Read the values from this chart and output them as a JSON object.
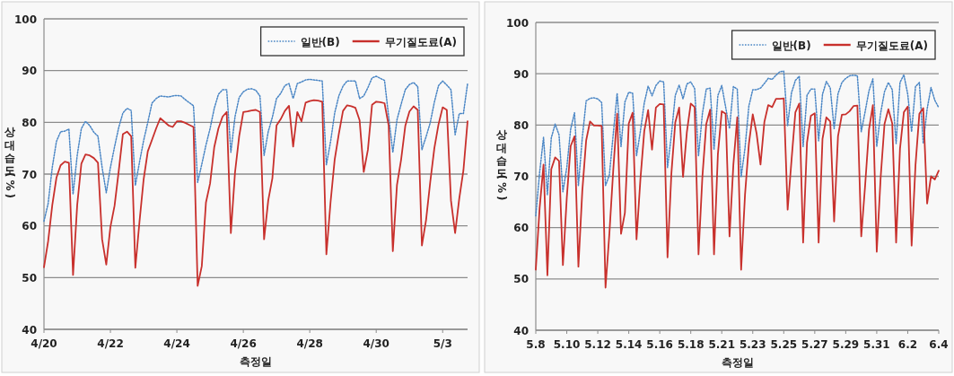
{
  "chart_data": [
    {
      "type": "line",
      "xlabel": "측정일",
      "ylabel": "상대습도(%)",
      "ylim": [
        40,
        100
      ],
      "yticks": [
        40,
        50,
        60,
        70,
        80,
        90,
        100
      ],
      "grid": "y",
      "legend": "top right",
      "categories": [
        "4/20",
        null,
        null,
        null,
        null,
        null,
        null,
        null,
        null,
        null,
        null,
        null,
        null,
        null,
        null,
        null,
        "4/22",
        null,
        null,
        null,
        null,
        null,
        null,
        null,
        null,
        null,
        null,
        null,
        null,
        null,
        null,
        null,
        "4/24",
        null,
        null,
        null,
        null,
        null,
        null,
        null,
        null,
        null,
        null,
        null,
        null,
        null,
        null,
        null,
        "4/26",
        null,
        null,
        null,
        null,
        null,
        null,
        null,
        null,
        null,
        null,
        null,
        null,
        null,
        null,
        null,
        "4/28",
        null,
        null,
        null,
        null,
        null,
        null,
        null,
        null,
        null,
        null,
        null,
        null,
        null,
        null,
        null,
        "4/30",
        null,
        null,
        null,
        null,
        null,
        null,
        null,
        null,
        null,
        null,
        null,
        null,
        null,
        null,
        null,
        "5/3",
        null,
        null,
        null,
        null,
        null,
        null
      ],
      "series": [
        {
          "name": "일반(B)",
          "color": "#4a86c5",
          "line_style": "dotted",
          "values": [
            60.9,
            64.3,
            71.3,
            76.3,
            78.2,
            78.3,
            78.7,
            66.1,
            73.6,
            78.8,
            80.2,
            79.4,
            78.1,
            77.3,
            71.3,
            66.4,
            71.3,
            75.3,
            79,
            81.8,
            82.7,
            82.3,
            67.8,
            72.3,
            76.5,
            80,
            83.7,
            84.6,
            85.1,
            85,
            84.9,
            85.1,
            85.2,
            85.1,
            84.4,
            83.8,
            83.2,
            68.4,
            71.9,
            75.6,
            78.8,
            82.7,
            85.4,
            86.3,
            86.3,
            74.2,
            81.1,
            84.8,
            85.9,
            86.4,
            86.5,
            86.2,
            85.1,
            73.6,
            78.2,
            81,
            84.6,
            85.6,
            87.1,
            87.5,
            84.6,
            87.5,
            87.8,
            88.2,
            88.3,
            88.2,
            88.1,
            88,
            71.8,
            76.2,
            81.8,
            85.1,
            87,
            88,
            88,
            88,
            84.6,
            85.1,
            86.7,
            88.6,
            88.9,
            88.5,
            88.1,
            81.1,
            74.2,
            80.5,
            83.5,
            86.3,
            87.3,
            87.7,
            86.9,
            74.7,
            77.2,
            79.9,
            83.9,
            87.1,
            88,
            87.2,
            86.3,
            77.6,
            81.7,
            81.7,
            87.5
          ]
        },
        {
          "name": "무기질도료(A)",
          "color": "#c8302c",
          "line_style": "solid",
          "values": [
            52,
            57,
            64,
            69.3,
            71.7,
            72.4,
            72.2,
            50.5,
            64,
            72,
            73.8,
            73.6,
            73.1,
            72.2,
            57.4,
            52.5,
            59.8,
            63.9,
            70.6,
            77.7,
            78.2,
            77.3,
            51.9,
            60.8,
            69,
            74.4,
            76.6,
            78.8,
            80.8,
            80.1,
            79.4,
            79.1,
            80.2,
            80.2,
            79.9,
            79.5,
            79.1,
            48.4,
            52.2,
            64.5,
            68.2,
            75.2,
            78.8,
            81.1,
            82,
            58.6,
            70.3,
            77.3,
            82,
            82.1,
            82.3,
            82.4,
            82,
            57.4,
            64.9,
            69.2,
            79.4,
            80.6,
            82.2,
            83.2,
            75.3,
            82,
            80.2,
            83.8,
            84.1,
            84.3,
            84.2,
            84,
            54.5,
            64.5,
            72.8,
            77.8,
            82.2,
            83.3,
            83.1,
            82.8,
            80.4,
            70.4,
            74.7,
            83.4,
            84,
            83.9,
            83.7,
            79.4,
            55.1,
            67.9,
            72.8,
            79.3,
            82.1,
            83.1,
            82.4,
            56.2,
            61.1,
            68.4,
            75,
            79.6,
            82.9,
            82.4,
            64.9,
            58.6,
            65.3,
            70.7,
            80.2
          ]
        }
      ]
    },
    {
      "type": "line",
      "xlabel": "측정일",
      "ylabel": "상대습도(%)",
      "ylim": [
        40,
        100
      ],
      "yticks": [
        40,
        50,
        60,
        70,
        80,
        90,
        100
      ],
      "grid": "y",
      "legend": "top right",
      "categories": [
        "5.8",
        null,
        null,
        null,
        null,
        null,
        null,
        null,
        "5.10",
        null,
        null,
        null,
        null,
        null,
        null,
        null,
        "5.12",
        null,
        null,
        null,
        null,
        null,
        null,
        null,
        "5.14",
        null,
        null,
        null,
        null,
        null,
        null,
        null,
        "5.16",
        null,
        null,
        null,
        null,
        null,
        null,
        null,
        "5.18",
        null,
        null,
        null,
        null,
        null,
        null,
        null,
        "5.21",
        null,
        null,
        null,
        null,
        null,
        null,
        null,
        "5.23",
        null,
        null,
        null,
        null,
        null,
        null,
        null,
        "5.25",
        null,
        null,
        null,
        null,
        null,
        null,
        null,
        "5.27",
        null,
        null,
        null,
        null,
        null,
        null,
        null,
        "5.29",
        null,
        null,
        null,
        null,
        null,
        null,
        null,
        "5.31",
        null,
        null,
        null,
        null,
        null,
        null,
        null,
        "6.2",
        null,
        null,
        null,
        null,
        null,
        null,
        null,
        "6.4"
      ],
      "series": [
        {
          "name": "일반(B)",
          "color": "#4a86c5",
          "line_style": "dotted",
          "values": [
            62.3,
            70.8,
            77.6,
            66.4,
            77.5,
            80.2,
            78.1,
            67,
            71.7,
            79.2,
            82.4,
            68.2,
            77.5,
            84.7,
            85.2,
            85.3,
            85.1,
            84.4,
            68.2,
            70.3,
            78.3,
            86.2,
            75.8,
            84.5,
            86.4,
            86.2,
            74,
            78.8,
            84.3,
            87.6,
            85.7,
            87.7,
            88.6,
            88.4,
            71.7,
            78.1,
            85.8,
            87.8,
            85.1,
            88,
            88.4,
            87.1,
            74,
            82.2,
            87,
            87.2,
            75.2,
            85.8,
            87.7,
            83.5,
            79.3,
            87.5,
            87,
            69.9,
            75.5,
            83.7,
            86.9,
            86.9,
            87.2,
            88.1,
            89.1,
            88.9,
            89.7,
            90.4,
            90.5,
            79.9,
            86.3,
            88.7,
            89.5,
            75.8,
            85.8,
            87,
            87,
            76.9,
            86,
            88.5,
            87.2,
            79.3,
            86.1,
            88.3,
            89.1,
            89.6,
            89.7,
            89.6,
            78.7,
            82.6,
            86.7,
            89,
            75.8,
            82.3,
            86.5,
            88.3,
            86.9,
            76.4,
            88.3,
            89.8,
            86,
            78.7,
            87.5,
            88.3,
            76.4,
            83.1,
            87.3,
            84.8,
            83.4
          ]
        },
        {
          "name": "무기질도료(A)",
          "color": "#c8302c",
          "line_style": "solid",
          "values": [
            51.8,
            63.9,
            72.3,
            50.7,
            71.4,
            73.7,
            73,
            52.7,
            65.8,
            75.9,
            77.8,
            52.4,
            67.1,
            77,
            80.7,
            79.9,
            79.9,
            79.8,
            48.3,
            58.9,
            71.3,
            82.2,
            58.8,
            62.9,
            80.3,
            82.4,
            57.7,
            69.4,
            78.8,
            82.9,
            75.2,
            83.4,
            84.1,
            84,
            54.2,
            70.6,
            80.5,
            83.4,
            69.9,
            78.7,
            84.2,
            83.5,
            54.8,
            69.9,
            80.2,
            83,
            54.8,
            74.3,
            82.7,
            82.2,
            58.3,
            72.3,
            81.5,
            51.8,
            66.4,
            76.3,
            82.1,
            78.3,
            72.3,
            80.6,
            83.9,
            83.5,
            85.1,
            85.1,
            85.2,
            63.5,
            73.1,
            82.5,
            84.2,
            57.1,
            76.6,
            81.8,
            82.3,
            57.1,
            77.3,
            81.5,
            80.7,
            61.2,
            77.8,
            82,
            82.1,
            82.7,
            83.7,
            83.8,
            58.3,
            68.2,
            79.1,
            83.9,
            55.3,
            69.7,
            80.2,
            83.1,
            80.3,
            57.1,
            75.4,
            82.5,
            83.6,
            56.5,
            72.2,
            82.2,
            83.3,
            64.7,
            70,
            69.4,
            71.1
          ]
        }
      ]
    }
  ]
}
